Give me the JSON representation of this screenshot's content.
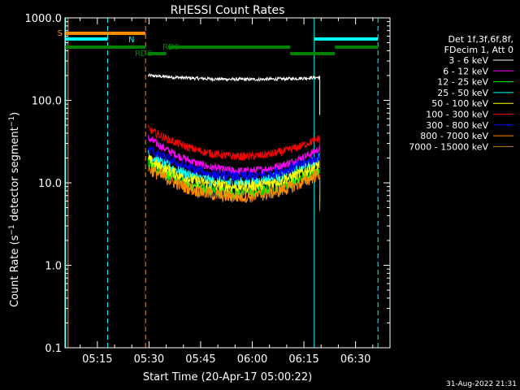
{
  "chart_data": {
    "type": "line",
    "title": "RHESSI Count Rates",
    "xlabel": "Start Time (20-Apr-17 05:00:22)",
    "ylabel_parts": [
      "Count Rate (s",
      "−1",
      " detector segment",
      "−1",
      ")"
    ],
    "y_scale": "log",
    "ylim": [
      0.1,
      1000.0
    ],
    "y_ticks": [
      {
        "value": 0.1,
        "label": "0.1"
      },
      {
        "value": 1,
        "label": "1.0"
      },
      {
        "value": 10,
        "label": "10.0"
      },
      {
        "value": 100,
        "label": "100.0"
      },
      {
        "value": 1000,
        "label": "1000.0"
      }
    ],
    "xlim_minutes": [
      5.6,
      100
    ],
    "x_ticks": [
      {
        "minute": 15,
        "label": "05:15"
      },
      {
        "minute": 30,
        "label": "05:30"
      },
      {
        "minute": 45,
        "label": "05:45"
      },
      {
        "minute": 60,
        "label": "06:00"
      },
      {
        "minute": 75,
        "label": "06:15"
      },
      {
        "minute": 90,
        "label": "06:30"
      }
    ],
    "data_start_minute": 29.8,
    "data_end_minute": 79.6,
    "legend_header": [
      "Det 1f,3f,6f,8f,",
      "FDecim 1, Att 0"
    ],
    "series": [
      {
        "name": "3 - 6 keV",
        "color": "#ffffff",
        "start": 200,
        "mid": 180,
        "end": 190,
        "noise": 0.02
      },
      {
        "name": "6 - 12 keV",
        "color": "#ff00ff",
        "start": 35,
        "mid": 14,
        "end": 26,
        "noise": 0.05
      },
      {
        "name": "12 - 25 keV",
        "color": "#00ff00",
        "start": 17,
        "mid": 7.5,
        "end": 15,
        "noise": 0.07
      },
      {
        "name": "25 - 50 keV",
        "color": "#00ffff",
        "start": 22,
        "mid": 10,
        "end": 20,
        "noise": 0.07
      },
      {
        "name": "50 - 100 keV",
        "color": "#ffff00",
        "start": 19,
        "mid": 9,
        "end": 17,
        "noise": 0.07
      },
      {
        "name": "100 - 300 keV",
        "color": "#ff0000",
        "start": 45,
        "mid": 21,
        "end": 35,
        "noise": 0.05
      },
      {
        "name": "300 - 800 keV",
        "color": "#0000ff",
        "start": 26,
        "mid": 12,
        "end": 21,
        "noise": 0.06
      },
      {
        "name": "800 - 7000 keV",
        "color": "#ff8c00",
        "start": 15,
        "mid": 6.8,
        "end": 13,
        "noise": 0.08
      },
      {
        "name": "7000 - 15000 keV",
        "color": "#c08020",
        "start": 0,
        "mid": 0,
        "end": 0,
        "noise": 0
      }
    ],
    "vertical_markers": [
      {
        "minute": 5.8,
        "color": "#00ffff",
        "style": "solid"
      },
      {
        "minute": 6.5,
        "color": "#ff8c00",
        "style": "solid"
      },
      {
        "minute": 18,
        "color": "#00ffff",
        "style": "dashed"
      },
      {
        "minute": 29,
        "color": "#ff8c00",
        "style": "dashed"
      },
      {
        "minute": 78,
        "color": "#00ffff",
        "style": "solid"
      },
      {
        "minute": 96.5,
        "color": "#00ffff",
        "style": "dashed"
      }
    ],
    "flag_bars": [
      {
        "label": "S",
        "color": "#ff8c00",
        "segments": [
          [
            5.6,
            29
          ]
        ]
      },
      {
        "label": "N",
        "color": "#00ffff",
        "segments": [
          [
            5.6,
            18
          ],
          [
            78,
            96.5
          ]
        ]
      },
      {
        "label": "RD0",
        "color": "#008000",
        "segments": [
          [
            5.6,
            29
          ],
          [
            35.5,
            71
          ],
          [
            84,
            96.5
          ]
        ]
      },
      {
        "label": "RD6",
        "color": "#008000",
        "segments": [
          [
            29.8,
            35
          ],
          [
            71,
            84
          ]
        ]
      }
    ],
    "timestamp": "31-Aug-2022 21:31"
  }
}
